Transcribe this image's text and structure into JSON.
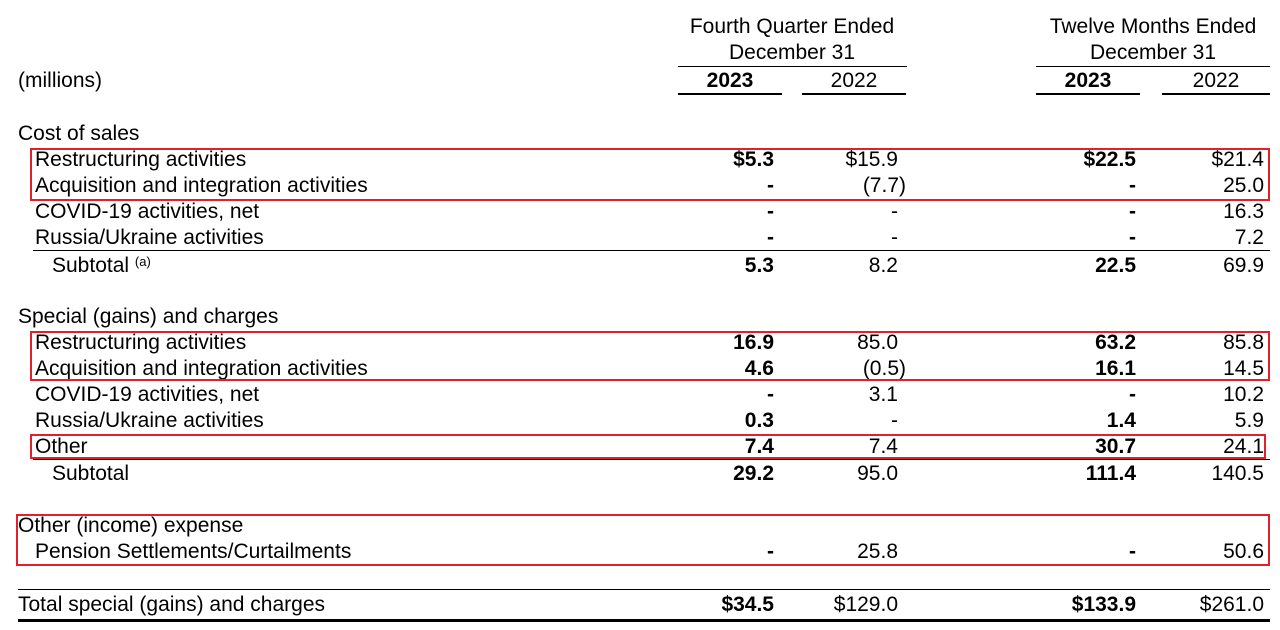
{
  "header": {
    "units": "(millions)",
    "group_q": [
      "Fourth Quarter Ended",
      "December 31"
    ],
    "group_y": [
      "Twelve Months Ended",
      "December 31"
    ],
    "years": [
      "2023",
      "2022",
      "2023",
      "2022"
    ]
  },
  "sections": [
    {
      "title": "Cost of sales",
      "rows": [
        {
          "label": "Restructuring activities",
          "values": [
            "$5.3",
            "$15.9",
            "$22.5",
            "$21.4"
          ]
        },
        {
          "label": "Acquisition and integration activities",
          "values": [
            "-",
            "(7.7)",
            "-",
            "25.0"
          ]
        },
        {
          "label": "COVID-19 activities, net",
          "values": [
            "-",
            "-",
            "-",
            "16.3"
          ]
        },
        {
          "label": "Russia/Ukraine activities",
          "values": [
            "-",
            "-",
            "-",
            "7.2"
          ]
        }
      ],
      "subtotal": {
        "label": "Subtotal",
        "note": "(a)",
        "values": [
          "5.3",
          "8.2",
          "22.5",
          "69.9"
        ]
      }
    },
    {
      "title": "Special (gains) and charges",
      "rows": [
        {
          "label": "Restructuring activities",
          "values": [
            "16.9",
            "85.0",
            "63.2",
            "85.8"
          ]
        },
        {
          "label": "Acquisition and integration activities",
          "values": [
            "4.6",
            "(0.5)",
            "16.1",
            "14.5"
          ]
        },
        {
          "label": "COVID-19 activities, net",
          "values": [
            "-",
            "3.1",
            "-",
            "10.2"
          ]
        },
        {
          "label": "Russia/Ukraine activities",
          "values": [
            "0.3",
            "-",
            "1.4",
            "5.9"
          ]
        },
        {
          "label": "Other",
          "values": [
            "7.4",
            "7.4",
            "30.7",
            "24.1"
          ]
        }
      ],
      "subtotal": {
        "label": "Subtotal",
        "values": [
          "29.2",
          "95.0",
          "111.4",
          "140.5"
        ]
      }
    },
    {
      "title": "Other (income) expense",
      "rows": [
        {
          "label": "Pension Settlements/Curtailments",
          "values": [
            "-",
            "25.8",
            "-",
            "50.6"
          ]
        }
      ]
    }
  ],
  "total": {
    "label": "Total special (gains) and charges",
    "values": [
      "$34.5",
      "$129.0",
      "$133.9",
      "$261.0"
    ]
  },
  "highlight_color": "#e0202a"
}
